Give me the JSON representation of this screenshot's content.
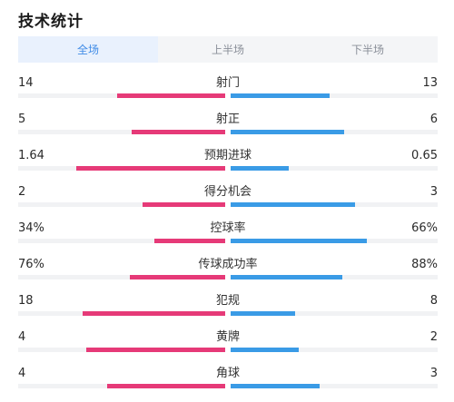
{
  "title": "技术统计",
  "tabs": [
    {
      "label": "全场",
      "active": true
    },
    {
      "label": "上半场",
      "active": false
    },
    {
      "label": "下半场",
      "active": false
    }
  ],
  "colors": {
    "home": "#e63a78",
    "away": "#3a9be6",
    "active_tab": "#3f8be6"
  },
  "stats": [
    {
      "label": "射门",
      "home": "14",
      "away": "13",
      "home_share": 0.52,
      "away_share": 0.48
    },
    {
      "label": "射正",
      "home": "5",
      "away": "6",
      "home_share": 0.45,
      "away_share": 0.55
    },
    {
      "label": "预期进球",
      "home": "1.64",
      "away": "0.65",
      "home_share": 0.72,
      "away_share": 0.28
    },
    {
      "label": "得分机会",
      "home": "2",
      "away": "3",
      "home_share": 0.4,
      "away_share": 0.6
    },
    {
      "label": "控球率",
      "home": "34%",
      "away": "66%",
      "home_share": 0.34,
      "away_share": 0.66
    },
    {
      "label": "传球成功率",
      "home": "76%",
      "away": "88%",
      "home_share": 0.46,
      "away_share": 0.54
    },
    {
      "label": "犯规",
      "home": "18",
      "away": "8",
      "home_share": 0.69,
      "away_share": 0.31
    },
    {
      "label": "黄牌",
      "home": "4",
      "away": "2",
      "home_share": 0.67,
      "away_share": 0.33
    },
    {
      "label": "角球",
      "home": "4",
      "away": "3",
      "home_share": 0.57,
      "away_share": 0.43
    }
  ]
}
